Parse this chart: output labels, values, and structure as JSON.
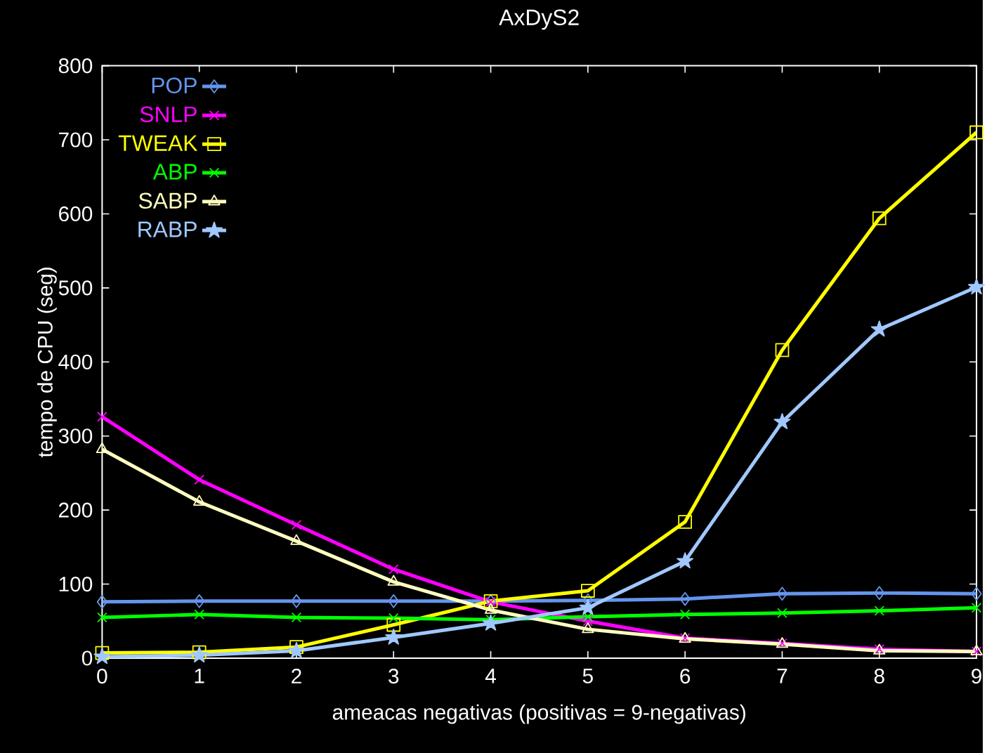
{
  "chart_data": {
    "type": "line",
    "title": "AxDyS2",
    "xlabel": "ameacas negativas (positivas = 9-negativas)",
    "ylabel": "tempo de CPU (seg)",
    "x": [
      0,
      1,
      2,
      3,
      4,
      5,
      6,
      7,
      8,
      9
    ],
    "xlim": [
      0,
      9
    ],
    "xticks": [
      0,
      1,
      2,
      3,
      4,
      5,
      6,
      7,
      8,
      9
    ],
    "ylim": [
      0,
      800
    ],
    "yticks": [
      0,
      100,
      200,
      300,
      400,
      500,
      600,
      700,
      800
    ],
    "legend": "top left",
    "line_style": "solid",
    "series": [
      {
        "name": "POP",
        "color": "#6495ed",
        "marker": "diamond",
        "values": [
          76,
          77,
          77,
          77,
          77,
          78,
          80,
          87,
          88,
          87
        ]
      },
      {
        "name": "SNLP",
        "color": "#ff00ff",
        "marker": "cross",
        "values": [
          326,
          241,
          180,
          120,
          76,
          50,
          27,
          20,
          12,
          9
        ]
      },
      {
        "name": "TWEAK",
        "color": "#ffff00",
        "marker": "square",
        "values": [
          7,
          8,
          15,
          45,
          77,
          91,
          184,
          416,
          594,
          710
        ]
      },
      {
        "name": "ABP",
        "color": "#00ff00",
        "marker": "cross",
        "values": [
          55,
          59,
          55,
          54,
          52,
          56,
          59,
          61,
          64,
          68
        ]
      },
      {
        "name": "SABP",
        "color": "#ffffc0",
        "marker": "triangle",
        "values": [
          282,
          211,
          158,
          103,
          65,
          39,
          26,
          19,
          10,
          9
        ]
      },
      {
        "name": "RABP",
        "color": "#a0c8ff",
        "marker": "star",
        "values": [
          2,
          4,
          10,
          28,
          47,
          68,
          131,
          319,
          444,
          501
        ]
      }
    ]
  }
}
